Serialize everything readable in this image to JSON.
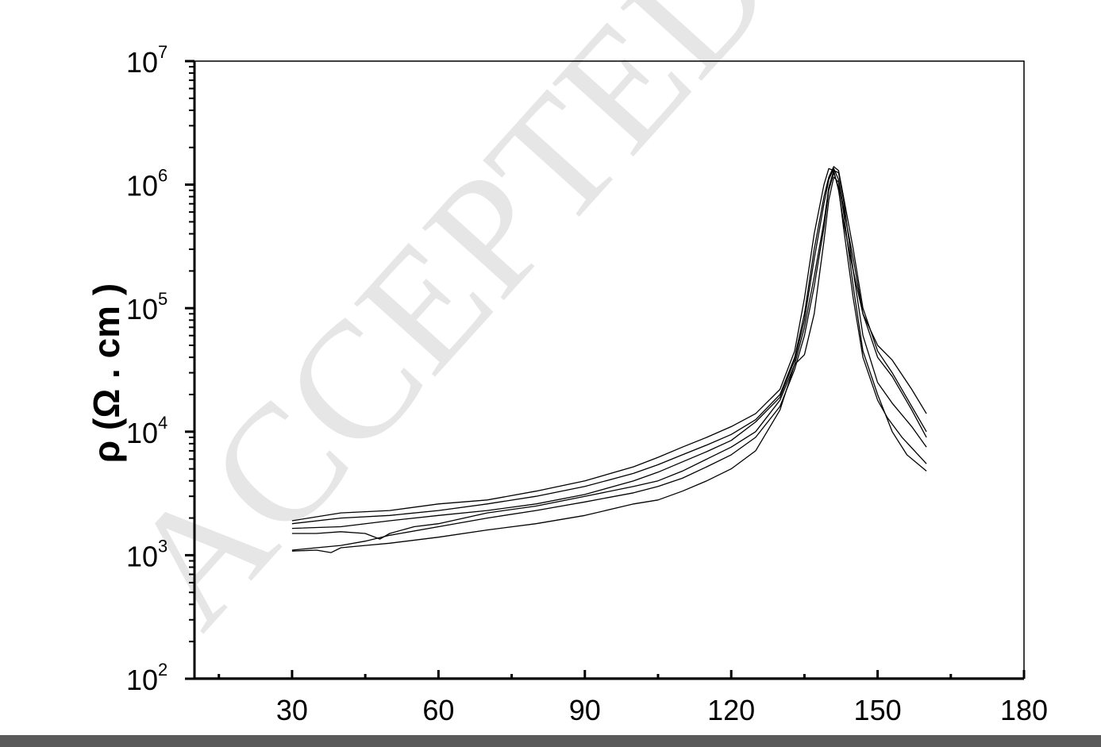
{
  "chart_data": {
    "type": "line",
    "title": "",
    "watermark": "ACCEPTED MA",
    "xlabel": "",
    "ylabel": "ρ (Ω . cm )",
    "y_symbol": "ρ",
    "y_unit": "(Ω . cm )",
    "x_scale": "linear",
    "y_scale": "log",
    "xlim": [
      10,
      180
    ],
    "ylim": [
      100,
      10000000
    ],
    "x_ticks": [
      30,
      60,
      90,
      120,
      150,
      180
    ],
    "x_tick_labels": [
      "30",
      "60",
      "90",
      "120",
      "150",
      "180"
    ],
    "y_ticks": [
      {
        "value": 100,
        "base": "10",
        "exp": "2"
      },
      {
        "value": 1000,
        "base": "10",
        "exp": "3"
      },
      {
        "value": 10000,
        "base": "10",
        "exp": "4"
      },
      {
        "value": 100000,
        "base": "10",
        "exp": "5"
      },
      {
        "value": 1000000,
        "base": "10",
        "exp": "6"
      },
      {
        "value": 10000000,
        "base": "10",
        "exp": "7"
      }
    ],
    "grid": false,
    "legend": "none",
    "line_color": "#000000",
    "series": [
      {
        "points": [
          [
            30,
            1900
          ],
          [
            40,
            2200
          ],
          [
            50,
            2300
          ],
          [
            60,
            2600
          ],
          [
            70,
            2800
          ],
          [
            80,
            3300
          ],
          [
            90,
            4000
          ],
          [
            100,
            5200
          ],
          [
            105,
            6200
          ],
          [
            110,
            7500
          ],
          [
            115,
            9000
          ],
          [
            120,
            11000
          ],
          [
            125,
            14000
          ],
          [
            130,
            22000
          ],
          [
            133,
            45000
          ],
          [
            135,
            120000
          ],
          [
            137,
            400000
          ],
          [
            139,
            1000000
          ],
          [
            140,
            1350000
          ],
          [
            141,
            1300000
          ],
          [
            142,
            900000
          ],
          [
            143,
            500000
          ],
          [
            145,
            200000
          ],
          [
            147,
            90000
          ],
          [
            150,
            50000
          ],
          [
            153,
            38000
          ],
          [
            157,
            22000
          ],
          [
            160,
            14000
          ]
        ]
      },
      {
        "points": [
          [
            30,
            1800
          ],
          [
            40,
            2000
          ],
          [
            50,
            2100
          ],
          [
            60,
            2300
          ],
          [
            70,
            2600
          ],
          [
            80,
            3000
          ],
          [
            90,
            3600
          ],
          [
            100,
            4600
          ],
          [
            105,
            5400
          ],
          [
            110,
            6500
          ],
          [
            115,
            7800
          ],
          [
            120,
            9500
          ],
          [
            125,
            12500
          ],
          [
            130,
            20000
          ],
          [
            133,
            40000
          ],
          [
            135,
            90000
          ],
          [
            137,
            300000
          ],
          [
            139,
            800000
          ],
          [
            140,
            1150000
          ],
          [
            141,
            1400000
          ],
          [
            142,
            1300000
          ],
          [
            143,
            800000
          ],
          [
            145,
            300000
          ],
          [
            147,
            100000
          ],
          [
            150,
            45000
          ],
          [
            153,
            30000
          ],
          [
            157,
            16000
          ],
          [
            160,
            10000
          ]
        ]
      },
      {
        "points": [
          [
            30,
            1650
          ],
          [
            40,
            1700
          ],
          [
            50,
            1900
          ],
          [
            60,
            2100
          ],
          [
            70,
            2300
          ],
          [
            80,
            2600
          ],
          [
            90,
            3100
          ],
          [
            100,
            4000
          ],
          [
            105,
            4700
          ],
          [
            110,
            5700
          ],
          [
            115,
            6900
          ],
          [
            120,
            8500
          ],
          [
            125,
            12000
          ],
          [
            130,
            19000
          ],
          [
            133,
            38000
          ],
          [
            135,
            80000
          ],
          [
            137,
            250000
          ],
          [
            139,
            700000
          ],
          [
            140,
            1100000
          ],
          [
            141,
            1350000
          ],
          [
            142,
            1100000
          ],
          [
            143,
            650000
          ],
          [
            145,
            250000
          ],
          [
            147,
            90000
          ],
          [
            150,
            40000
          ],
          [
            153,
            28000
          ],
          [
            157,
            15000
          ],
          [
            160,
            9000
          ]
        ]
      },
      {
        "points": [
          [
            30,
            1500
          ],
          [
            35,
            1500
          ],
          [
            40,
            1550
          ],
          [
            45,
            1500
          ],
          [
            48,
            1350
          ],
          [
            50,
            1500
          ],
          [
            55,
            1700
          ],
          [
            60,
            1800
          ],
          [
            70,
            2200
          ],
          [
            80,
            2500
          ],
          [
            90,
            3000
          ],
          [
            100,
            3600
          ],
          [
            105,
            4000
          ],
          [
            110,
            4800
          ],
          [
            115,
            6000
          ],
          [
            120,
            7500
          ],
          [
            125,
            10000
          ],
          [
            130,
            18000
          ],
          [
            133,
            35000
          ],
          [
            135,
            70000
          ],
          [
            137,
            180000
          ],
          [
            139,
            500000
          ],
          [
            140,
            950000
          ],
          [
            141,
            1300000
          ],
          [
            142,
            1250000
          ],
          [
            143,
            750000
          ],
          [
            145,
            200000
          ],
          [
            147,
            60000
          ],
          [
            150,
            25000
          ],
          [
            153,
            17000
          ],
          [
            157,
            11000
          ],
          [
            160,
            7500
          ]
        ]
      },
      {
        "points": [
          [
            30,
            1100
          ],
          [
            35,
            1150
          ],
          [
            40,
            1200
          ],
          [
            45,
            1300
          ],
          [
            50,
            1450
          ],
          [
            60,
            1700
          ],
          [
            70,
            2000
          ],
          [
            80,
            2300
          ],
          [
            90,
            2700
          ],
          [
            100,
            3200
          ],
          [
            105,
            3600
          ],
          [
            110,
            4200
          ],
          [
            115,
            5200
          ],
          [
            120,
            6500
          ],
          [
            125,
            9000
          ],
          [
            130,
            16000
          ],
          [
            133,
            32000
          ],
          [
            135,
            60000
          ],
          [
            137,
            150000
          ],
          [
            139,
            450000
          ],
          [
            140,
            900000
          ],
          [
            141,
            1250000
          ],
          [
            142,
            950000
          ],
          [
            143,
            450000
          ],
          [
            145,
            120000
          ],
          [
            147,
            40000
          ],
          [
            150,
            18000
          ],
          [
            152,
            13000
          ],
          [
            155,
            9000
          ],
          [
            160,
            5500
          ]
        ]
      },
      {
        "points": [
          [
            30,
            1080
          ],
          [
            35,
            1100
          ],
          [
            38,
            1050
          ],
          [
            40,
            1150
          ],
          [
            45,
            1200
          ],
          [
            50,
            1250
          ],
          [
            60,
            1400
          ],
          [
            70,
            1600
          ],
          [
            80,
            1800
          ],
          [
            90,
            2100
          ],
          [
            100,
            2600
          ],
          [
            105,
            2800
          ],
          [
            110,
            3300
          ],
          [
            115,
            4000
          ],
          [
            120,
            5000
          ],
          [
            125,
            7000
          ],
          [
            130,
            15000
          ],
          [
            133,
            35000
          ],
          [
            135,
            42000
          ],
          [
            137,
            90000
          ],
          [
            139,
            350000
          ],
          [
            140,
            750000
          ],
          [
            141,
            1150000
          ],
          [
            142,
            1050000
          ],
          [
            143,
            600000
          ],
          [
            145,
            150000
          ],
          [
            147,
            45000
          ],
          [
            150,
            20000
          ],
          [
            153,
            10000
          ],
          [
            156,
            6500
          ],
          [
            160,
            4800
          ]
        ]
      }
    ]
  }
}
